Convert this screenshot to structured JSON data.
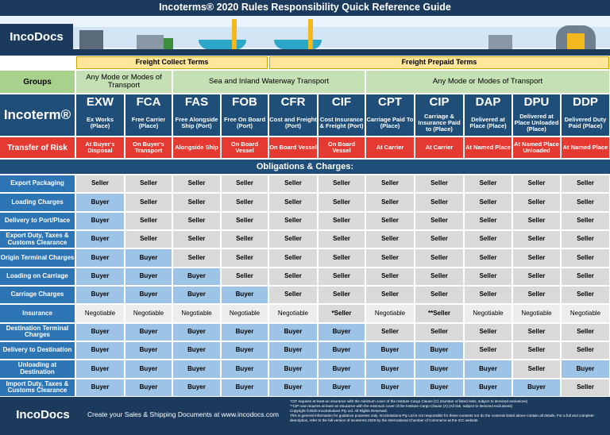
{
  "header": {
    "title": "Incoterms® 2020 Rules Responsibility Quick Reference Guide",
    "logo": "IncoDocs"
  },
  "freight_terms": [
    "Freight Collect Terms",
    "Freight Prepaid Terms"
  ],
  "groups": {
    "label": "Groups",
    "items": [
      "Any Mode or Modes of Transport",
      "Sea and Inland Waterway Transport",
      "Any Mode or Modes of Transport"
    ]
  },
  "incoterm_label": "Incoterm®",
  "risk_label": "Transfer of Risk",
  "rules": [
    {
      "code": "EXW",
      "description": "Ex Works (Place)",
      "risk": "At Buyer's Disposal"
    },
    {
      "code": "FCA",
      "description": "Free Carrier (Place)",
      "risk": "On Buyer's Transport"
    },
    {
      "code": "FAS",
      "description": "Free Alongside Ship (Port)",
      "risk": "Alongside Ship"
    },
    {
      "code": "FOB",
      "description": "Free On Board (Port)",
      "risk": "On Board Vessel"
    },
    {
      "code": "CFR",
      "description": "Cost and Freight (Port)",
      "risk": "On Board Vessel"
    },
    {
      "code": "CIF",
      "description": "Cost Insurance & Freight (Port)",
      "risk": "On Board Vessel"
    },
    {
      "code": "CPT",
      "description": "Carriage Paid To (Place)",
      "risk": "At Carrier"
    },
    {
      "code": "CIP",
      "description": "Carriage & Insurance Paid to (Place)",
      "risk": "At Carrier"
    },
    {
      "code": "DAP",
      "description": "Delivered at Place (Place)",
      "risk": "At Named Place"
    },
    {
      "code": "DPU",
      "description": "Delivered at Place Unloaded (Place)",
      "risk": "At Named Place Unloaded"
    },
    {
      "code": "DDP",
      "description": "Delivered Duty Paid (Place)",
      "risk": "At Named Place"
    }
  ],
  "obligations_title": "Obligations & Charges:",
  "obligations": [
    {
      "label": "Export Packaging",
      "cells": [
        "Seller",
        "Seller",
        "Seller",
        "Seller",
        "Seller",
        "Seller",
        "Seller",
        "Seller",
        "Seller",
        "Seller",
        "Seller"
      ]
    },
    {
      "label": "Loading Charges",
      "cells": [
        "Buyer",
        "Seller",
        "Seller",
        "Seller",
        "Seller",
        "Seller",
        "Seller",
        "Seller",
        "Seller",
        "Seller",
        "Seller"
      ]
    },
    {
      "label": "Delivery to Port/Place",
      "cells": [
        "Buyer",
        "Seller",
        "Seller",
        "Seller",
        "Seller",
        "Seller",
        "Seller",
        "Seller",
        "Seller",
        "Seller",
        "Seller"
      ]
    },
    {
      "label": "Export Duty, Taxes & Customs Clearance",
      "cells": [
        "Buyer",
        "Seller",
        "Seller",
        "Seller",
        "Seller",
        "Seller",
        "Seller",
        "Seller",
        "Seller",
        "Seller",
        "Seller"
      ]
    },
    {
      "label": "Origin Terminal Charges",
      "cells": [
        "Buyer",
        "Buyer",
        "Seller",
        "Seller",
        "Seller",
        "Seller",
        "Seller",
        "Seller",
        "Seller",
        "Seller",
        "Seller"
      ]
    },
    {
      "label": "Loading on Carriage",
      "cells": [
        "Buyer",
        "Buyer",
        "Buyer",
        "Seller",
        "Seller",
        "Seller",
        "Seller",
        "Seller",
        "Seller",
        "Seller",
        "Seller"
      ]
    },
    {
      "label": "Carriage Charges",
      "cells": [
        "Buyer",
        "Buyer",
        "Buyer",
        "Buyer",
        "Seller",
        "Seller",
        "Seller",
        "Seller",
        "Seller",
        "Seller",
        "Seller"
      ]
    },
    {
      "label": "Insurance",
      "cells": [
        "Negotiable",
        "Negotiable",
        "Negotiable",
        "Negotiable",
        "Negotiable",
        "*Seller",
        "Negotiable",
        "**Seller",
        "Negotiable",
        "Negotiable",
        "Negotiable"
      ]
    },
    {
      "label": "Destination Terminal Charges",
      "cells": [
        "Buyer",
        "Buyer",
        "Buyer",
        "Buyer",
        "Buyer",
        "Buyer",
        "Seller",
        "Seller",
        "Seller",
        "Seller",
        "Seller"
      ]
    },
    {
      "label": "Delivery to Destination",
      "cells": [
        "Buyer",
        "Buyer",
        "Buyer",
        "Buyer",
        "Buyer",
        "Buyer",
        "Buyer",
        "Buyer",
        "Seller",
        "Seller",
        "Seller"
      ]
    },
    {
      "label": "Unloading at Destination",
      "cells": [
        "Buyer",
        "Buyer",
        "Buyer",
        "Buyer",
        "Buyer",
        "Buyer",
        "Buyer",
        "Buyer",
        "Buyer",
        "Seller",
        "Buyer"
      ]
    },
    {
      "label": "Import Duty, Taxes & Customs Clearance",
      "cells": [
        "Buyer",
        "Buyer",
        "Buyer",
        "Buyer",
        "Buyer",
        "Buyer",
        "Buyer",
        "Buyer",
        "Buyer",
        "Buyer",
        "Seller"
      ]
    }
  ],
  "footer": {
    "logo": "IncoDocs",
    "tagline": "Create your Sales & Shipping Documents at www.incodocs.com",
    "notes": [
      "*CIF requires at least an insurance with the minimum cover of the Institute Cargo Clause (C) (Number of listed risks, subject to itemized exclusions)",
      "**CIP now requires at least an insurance with the minimum cover of the Institute Cargo Clause (A) (All risk, subject to itemized exclusions)",
      "Copyright ©2020 IncoSolutions Pty Ltd. All Rights Reserved.",
      "This is general information for guidance purposes only. IncoSolutions Pty Ltd is not responsible for these contents nor do the contents listed above contain all details. For a full and complete description, refer to the full version of Incoterms 2020 by the International Chamber of Commerce at the ICC website."
    ]
  }
}
